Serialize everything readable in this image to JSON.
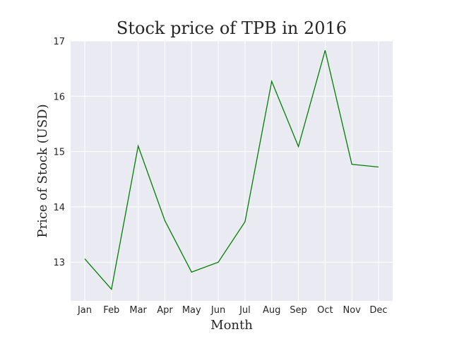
{
  "chart_data": {
    "type": "line",
    "title": "Stock price of TPB in 2016",
    "xlabel": "Month",
    "ylabel": "Price of Stock (USD)",
    "categories": [
      "Jan",
      "Feb",
      "Mar",
      "Apr",
      "May",
      "Jun",
      "Jul",
      "Aug",
      "Sep",
      "Oct",
      "Nov",
      "Dec"
    ],
    "series": [
      {
        "values": [
          13.06,
          12.51,
          15.1,
          13.75,
          12.82,
          13.0,
          13.73,
          16.27,
          15.09,
          16.83,
          14.77,
          14.72
        ],
        "color": "#008000"
      }
    ],
    "ylim": [
      12.3,
      17.0
    ],
    "yticks": [
      13,
      14,
      15,
      16,
      17
    ],
    "grid": true,
    "background": "#EAEAF2",
    "grid_color": "#FFFFFF"
  }
}
